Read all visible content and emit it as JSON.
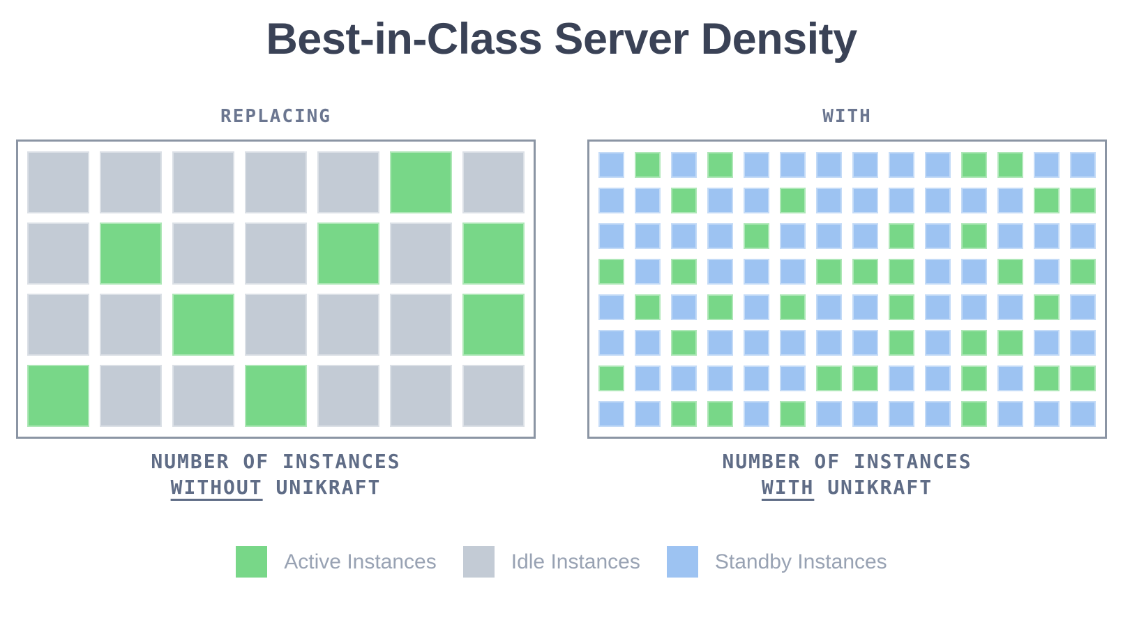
{
  "title": "Best-in-Class Server Density",
  "colors": {
    "active": "#78d788",
    "idle": "#c3cbd5",
    "standby": "#9dc3f2",
    "border": "#8b95a4",
    "title": "#3a4256",
    "header": "#6b7690",
    "caption": "#5f6c86",
    "legend_text": "#98a2b3"
  },
  "cell_types": {
    "A": "active",
    "I": "idle",
    "S": "standby"
  },
  "panels": [
    {
      "header": "REPLACING",
      "caption_line1": "NUMBER OF INSTANCES",
      "caption_underlined": "WITHOUT",
      "caption_after": "UNIKRAFT",
      "grid": {
        "columns": 7,
        "rows": [
          "IIIIIAI",
          "IAIIAIA",
          "IIAIIIA",
          "AIIAIII"
        ]
      }
    },
    {
      "header": "WITH",
      "caption_line1": "NUMBER OF INSTANCES",
      "caption_underlined": "WITH",
      "caption_after": "UNIKRAFT",
      "grid": {
        "columns": 14,
        "rows": [
          "SASASSSSSSAASS",
          "SSASSASSSSSSAA",
          "SSSSASSSASASSS",
          "ASASSSAAASSASA",
          "SASASASSASSSAS",
          "SSASSSSSASAASS",
          "ASSSSSAASSASAA",
          "SSAASASSSSASSS"
        ]
      }
    }
  ],
  "legend": [
    {
      "label": "Active Instances",
      "type": "active"
    },
    {
      "label": "Idle Instances",
      "type": "idle"
    },
    {
      "label": "Standby Instances",
      "type": "standby"
    }
  ]
}
